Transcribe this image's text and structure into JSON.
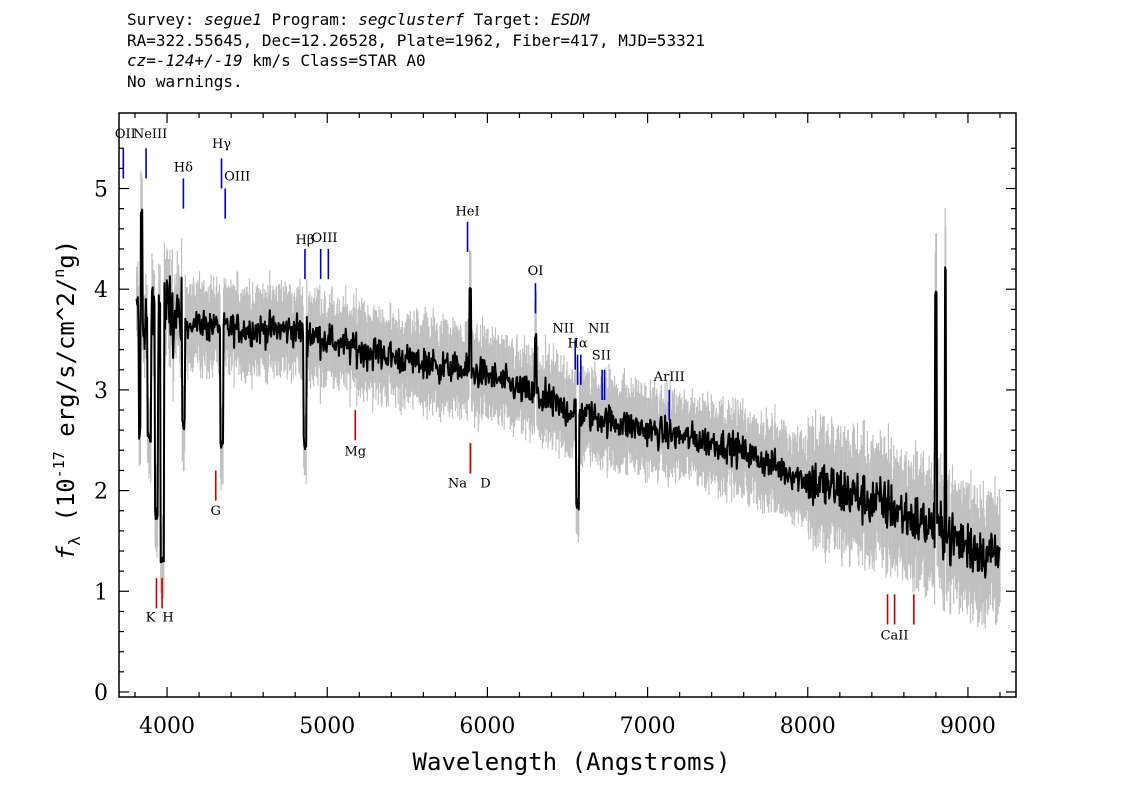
{
  "header": {
    "survey_label": "Survey: ",
    "survey": "segue1",
    "program_label": " Program: ",
    "program": "segclusterf",
    "target_label": " Target: ",
    "target": "ESDM",
    "line2": "RA=322.55645, Dec=12.26528, Plate=1962, Fiber=417, MJD=53321",
    "cz": "cz=-124+/-19",
    "cz_rest": " km/s Class=STAR A0",
    "line4": "No warnings."
  },
  "chart_data": {
    "type": "line",
    "title": "",
    "xlabel": "Wavelength (Angstroms)",
    "ylabel": "f_λ (10^-17 erg/s/cm^2/Ang)",
    "xlim": [
      3700,
      9300
    ],
    "ylim": [
      -0.05,
      5.75
    ],
    "xticks": [
      4000,
      5000,
      6000,
      7000,
      8000,
      9000
    ],
    "yticks": [
      0,
      1,
      2,
      3,
      4,
      5
    ],
    "colors": {
      "spectrum": "#000000",
      "noise_band": "#c0c0c0",
      "emission_marker": "#0000cc",
      "absorption_marker": "#cc0000"
    },
    "spectrum_outline": [
      {
        "wave": 3810,
        "flux": 3.7
      },
      {
        "wave": 3900,
        "flux": 3.75
      },
      {
        "wave": 4000,
        "flux": 3.75
      },
      {
        "wave": 4200,
        "flux": 3.65
      },
      {
        "wave": 4500,
        "flux": 3.6
      },
      {
        "wave": 4800,
        "flux": 3.6
      },
      {
        "wave": 5000,
        "flux": 3.5
      },
      {
        "wave": 5200,
        "flux": 3.4
      },
      {
        "wave": 5500,
        "flux": 3.3
      },
      {
        "wave": 6000,
        "flux": 3.15
      },
      {
        "wave": 6500,
        "flux": 2.8
      },
      {
        "wave": 7000,
        "flux": 2.6
      },
      {
        "wave": 7500,
        "flux": 2.45
      },
      {
        "wave": 8000,
        "flux": 2.1
      },
      {
        "wave": 8500,
        "flux": 1.85
      },
      {
        "wave": 9000,
        "flux": 1.45
      },
      {
        "wave": 9200,
        "flux": 1.35
      }
    ],
    "absorption_features": [
      {
        "wave": 3835,
        "flux": 2.5
      },
      {
        "wave": 3889,
        "flux": 2.45
      },
      {
        "wave": 3933,
        "flux": 1.7
      },
      {
        "wave": 3970,
        "flux": 1.25
      },
      {
        "wave": 4102,
        "flux": 2.6
      },
      {
        "wave": 4340,
        "flux": 2.35
      },
      {
        "wave": 4861,
        "flux": 2.4
      },
      {
        "wave": 6563,
        "flux": 1.8
      }
    ],
    "emission_features": [
      {
        "wave": 3840,
        "flux": 4.85
      },
      {
        "wave": 5892,
        "flux": 4.1
      },
      {
        "wave": 6300,
        "flux": 3.6
      },
      {
        "wave": 8860,
        "flux": 4.25
      },
      {
        "wave": 8800,
        "flux": 4.0
      }
    ],
    "line_labels": [
      {
        "text": "OII",
        "wave": 3727,
        "kind": "emission",
        "tick_flux": [
          5.1,
          5.4
        ],
        "label_flux": 5.5
      },
      {
        "text": "NeIII",
        "wave": 3869,
        "kind": "emission",
        "tick_flux": [
          5.1,
          5.4
        ],
        "label_flux": 5.5
      },
      {
        "text": "Hδ",
        "wave": 4102,
        "kind": "emission",
        "tick_flux": [
          4.8,
          5.1
        ],
        "label_flux": 5.17
      },
      {
        "text": "Hγ",
        "wave": 4340,
        "kind": "emission",
        "tick_flux": [
          5.0,
          5.3
        ],
        "label_flux": 5.4
      },
      {
        "text": "OIII",
        "wave": 4363,
        "kind": "emission",
        "tick_flux": [
          4.7,
          5.0
        ],
        "label_flux": 5.08
      },
      {
        "text": "Hβ",
        "wave": 4861,
        "kind": "emission",
        "tick_flux": [
          4.1,
          4.4
        ],
        "label_flux": 4.45
      },
      {
        "text": "OIII",
        "wave": 4959,
        "kind": "emission",
        "tick_flux": [
          4.1,
          4.4
        ],
        "label_flux": 4.47
      },
      {
        "text": "OIII",
        "wave": 5007,
        "kind": "emission",
        "tick_flux": [
          4.1,
          4.4
        ],
        "label_flux": 4.47
      },
      {
        "text": "HeI",
        "wave": 5876,
        "kind": "emission",
        "tick_flux": [
          4.37,
          4.67
        ],
        "label_flux": 4.73
      },
      {
        "text": "OI",
        "wave": 6300,
        "kind": "emission",
        "tick_flux": [
          3.76,
          4.06
        ],
        "label_flux": 4.14
      },
      {
        "text": "NII",
        "wave": 6548,
        "kind": "emission",
        "tick_flux": [
          3.2,
          3.5
        ],
        "label_flux": 3.57
      },
      {
        "text": "Hα",
        "wave": 6563,
        "kind": "emission",
        "tick_flux": [
          3.05,
          3.35
        ],
        "label_flux": 3.42
      },
      {
        "text": "NII",
        "wave": 6583,
        "kind": "emission",
        "tick_flux": [
          3.05,
          3.35
        ],
        "label_flux": 3.57
      },
      {
        "text": "SII",
        "wave": 6716,
        "kind": "emission",
        "tick_flux": [
          2.9,
          3.2
        ],
        "label_flux": 3.3
      },
      {
        "text": "SII",
        "wave": 6731,
        "kind": "emission",
        "tick_flux": [
          2.9,
          3.2
        ],
        "label_flux": 3.3
      },
      {
        "text": "ArIII",
        "wave": 7135,
        "kind": "emission",
        "tick_flux": [
          2.7,
          3.0
        ],
        "label_flux": 3.09
      },
      {
        "text": "K",
        "wave": 3934,
        "kind": "absorption",
        "tick_flux": [
          0.83,
          1.13
        ],
        "label_flux": 0.7
      },
      {
        "text": "H",
        "wave": 3969,
        "kind": "absorption",
        "tick_flux": [
          0.83,
          1.13
        ],
        "label_flux": 0.7
      },
      {
        "text": "G",
        "wave": 4304,
        "kind": "absorption",
        "tick_flux": [
          1.9,
          2.2
        ],
        "label_flux": 1.76
      },
      {
        "text": "Mg",
        "wave": 5175,
        "kind": "absorption",
        "tick_flux": [
          2.5,
          2.8
        ],
        "label_flux": 2.35
      },
      {
        "text": "Na",
        "wave": 5894,
        "kind": "absorption",
        "tick_flux": [
          2.17,
          2.47
        ],
        "label_flux": 2.03
      },
      {
        "text": "D",
        "wave": 5894,
        "kind": "absorption",
        "tick_flux": [
          2.17,
          2.47
        ],
        "label_flux": 2.03
      },
      {
        "text": "CaII",
        "wave": 8498,
        "kind": "absorption",
        "tick_flux": [
          0.67,
          0.97
        ],
        "label_flux": 0.52
      },
      {
        "text": "CaII",
        "wave": 8542,
        "kind": "absorption",
        "tick_flux": [
          0.67,
          0.97
        ],
        "label_flux": 0.52
      },
      {
        "text": "CaII",
        "wave": 8662,
        "kind": "absorption",
        "tick_flux": [
          0.67,
          0.97
        ],
        "label_flux": 0.52
      }
    ]
  }
}
